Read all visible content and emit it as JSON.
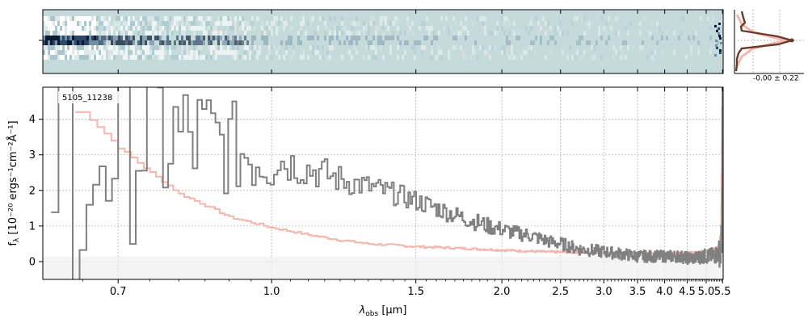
{
  "chart_data": [
    {
      "type": "image",
      "panel": "2d-spectrum",
      "description_colors": {
        "background": "#c4dadb",
        "dark": "#0d1a33",
        "light": "#ffffff"
      },
      "xlim": [
        0.6,
        5.52
      ]
    },
    {
      "type": "line",
      "panel": "spatial-profile",
      "annotation": "-0.00 ± 0.22",
      "profile_color": "#6b3b2a",
      "model_color": "#f4b6ad"
    },
    {
      "type": "line",
      "panel": "1d-spectrum",
      "label": "5105_11238",
      "xlabel": "λobs [μm]",
      "xlabel_main": "λ",
      "xlabel_sub": "obs",
      "xlabel_unit": " [μm]",
      "ylabel": "fλ [10⁻²⁰ ergs⁻¹cm⁻²Å⁻¹]",
      "ylabel_main": "f",
      "ylabel_sub": "λ",
      "ylabel_unit": " [10⁻²⁰ ergs⁻¹cm⁻²Å⁻¹]",
      "xscale": "reciprocal",
      "xlim": [
        0.6,
        5.52
      ],
      "ylim": [
        -0.5,
        4.9
      ],
      "grid": true,
      "xticks": [
        0.7,
        1.0,
        1.5,
        2.0,
        2.5,
        3.0,
        3.5,
        4.0,
        4.5,
        5.0,
        5.5
      ],
      "xtick_labels": [
        "0.7",
        "1.0",
        "1.5",
        "2.0",
        "2.5",
        "3.0",
        "3.5",
        "4.0",
        "4.5",
        "5.0",
        "5.5"
      ],
      "yticks": [
        0,
        1,
        2,
        3,
        4
      ],
      "ytick_labels": [
        "0",
        "1",
        "2",
        "3",
        "4"
      ],
      "series": [
        {
          "role": "flux",
          "color": "#808080",
          "x": [
            0.62,
            0.66,
            0.7,
            0.75,
            0.8,
            0.85,
            0.9,
            0.95,
            1.0,
            1.1,
            1.2,
            1.3,
            1.4,
            1.5,
            1.6,
            1.7,
            1.8,
            1.9,
            2.0,
            2.1,
            2.2,
            2.3,
            2.4,
            2.5,
            2.7,
            2.9,
            3.1,
            3.3,
            3.5,
            3.7,
            3.9,
            4.1,
            4.3,
            4.5,
            4.7,
            4.9,
            5.1,
            5.3,
            5.45,
            5.5
          ],
          "y": [
            3.0,
            3.5,
            3.8,
            3.6,
            3.4,
            3.4,
            3.2,
            3.0,
            2.9,
            2.6,
            2.3,
            2.1,
            1.9,
            1.7,
            1.5,
            1.3,
            1.15,
            1.0,
            0.9,
            0.8,
            0.75,
            0.65,
            0.55,
            0.5,
            0.35,
            0.3,
            0.25,
            0.2,
            0.15,
            0.15,
            0.15,
            0.15,
            0.15,
            0.1,
            0.1,
            0.15,
            0.15,
            0.2,
            0.3,
            3.6
          ]
        },
        {
          "role": "error",
          "color": "#f4b6ad",
          "x": [
            0.65,
            0.7,
            0.75,
            0.8,
            0.9,
            1.0,
            1.1,
            1.2,
            1.3,
            1.5,
            1.7,
            2.0,
            2.3,
            2.6,
            3.0,
            3.5,
            4.0,
            4.5,
            4.8,
            5.0,
            5.2,
            5.35,
            5.45,
            5.5
          ],
          "y": [
            4.2,
            3.2,
            2.5,
            1.9,
            1.25,
            0.95,
            0.75,
            0.6,
            0.5,
            0.42,
            0.38,
            0.32,
            0.28,
            0.26,
            0.25,
            0.24,
            0.24,
            0.25,
            0.27,
            0.3,
            0.33,
            0.4,
            0.8,
            4.9
          ]
        }
      ]
    }
  ]
}
